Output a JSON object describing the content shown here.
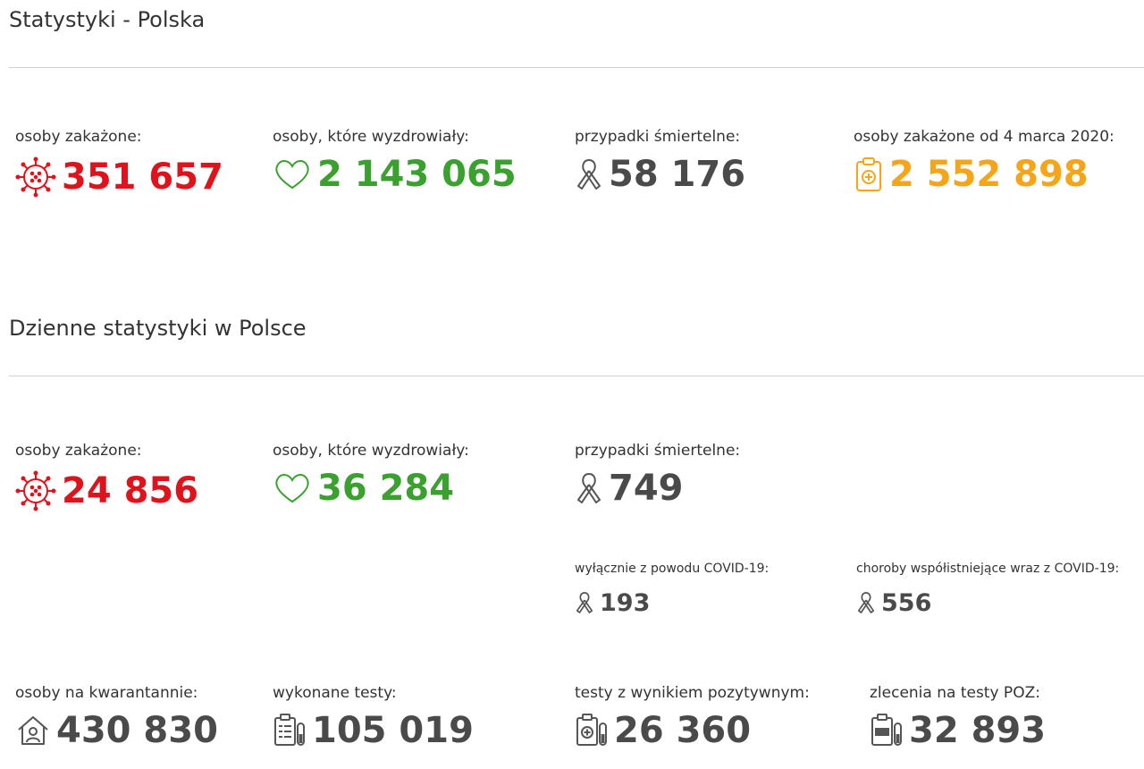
{
  "sections": {
    "overall_title": "Statystyki - Polska",
    "daily_title": "Dzienne statystyki w Polsce"
  },
  "overall": {
    "infected": {
      "label": "osoby zakażone:",
      "value": "351 657"
    },
    "recovered": {
      "label": "osoby, które wyzdrowiały:",
      "value": "2 143 065"
    },
    "deaths": {
      "label": "przypadki śmiertelne:",
      "value": "58 176"
    },
    "total_infected": {
      "label": "osoby zakażone od 4 marca 2020:",
      "value": "2 552 898"
    }
  },
  "daily": {
    "infected": {
      "label": "osoby zakażone:",
      "value": "24 856"
    },
    "recovered": {
      "label": "osoby, które wyzdrowiały:",
      "value": "36 284"
    },
    "deaths": {
      "label": "przypadki śmiertelne:",
      "value": "749"
    },
    "deaths_covid_only": {
      "label": "wyłącznie z powodu COVID-19:",
      "value": "193"
    },
    "deaths_comorbid": {
      "label": "choroby współistniejące wraz z COVID-19:",
      "value": "556"
    },
    "quarantine": {
      "label": "osoby na kwarantannie:",
      "value": "430 830"
    },
    "tests": {
      "label": "wykonane testy:",
      "value": "105 019"
    },
    "positive_tests": {
      "label": "testy z wynikiem pozytywnym:",
      "value": "26 360"
    },
    "poz_orders": {
      "label": "zlecenia na testy POZ:",
      "value": "32 893"
    }
  },
  "icons": {
    "virus": "virus-icon",
    "heart": "heart-icon",
    "ribbon": "ribbon-icon",
    "clipboard": "clipboard-medical-icon",
    "house": "house-person-icon",
    "test": "test-tube-icon",
    "poz": "poz-clipboard-icon"
  },
  "colors": {
    "red": "#e0121c",
    "green": "#3aa12f",
    "dark": "#4a4a4a",
    "orange": "#f6a519"
  }
}
